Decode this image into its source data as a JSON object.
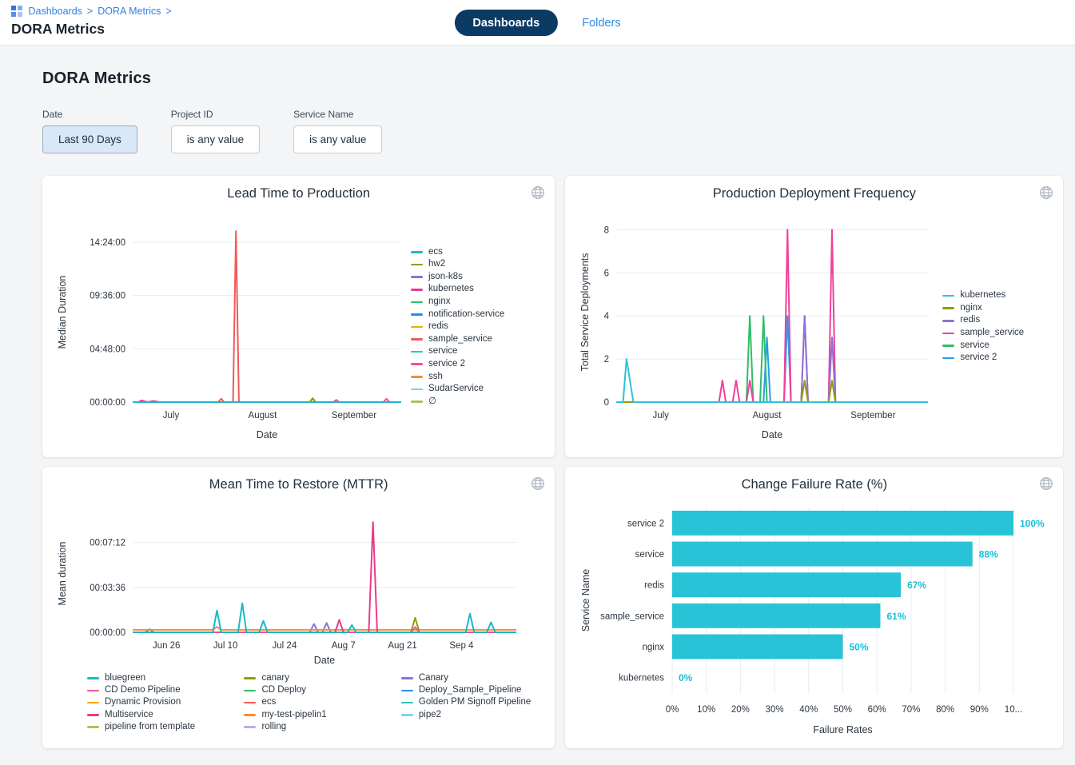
{
  "header": {
    "breadcrumb": {
      "items": [
        "Dashboards",
        "DORA Metrics"
      ],
      "separator": ">"
    },
    "page_title": "DORA Metrics",
    "tabs": {
      "dashboards": "Dashboards",
      "folders": "Folders"
    }
  },
  "dashboard": {
    "title": "DORA Metrics"
  },
  "filters": [
    {
      "label": "Date",
      "value": "Last 90 Days",
      "active": true
    },
    {
      "label": "Project ID",
      "value": "is any value",
      "active": false
    },
    {
      "label": "Service Name",
      "value": "is any value",
      "active": false
    }
  ],
  "icons": {
    "globe": "globe-icon",
    "breadcrumb_grid": "dashboard-grid-icon"
  },
  "colors": {
    "accent_blue": "#2f80e1",
    "pill_navy": "#0b3a63",
    "bar_cyan": "#28c3d7",
    "card_bg": "#ffffff",
    "page_bg": "#f4f5f7"
  },
  "chart_data": [
    {
      "type": "line",
      "title": "Lead Time to Production",
      "xlabel": "Date",
      "ylabel": "Median Duration",
      "x_domain": [
        0,
        91
      ],
      "x_ticks": [
        {
          "v": 13,
          "label": "July"
        },
        {
          "v": 44,
          "label": "August"
        },
        {
          "v": 75,
          "label": "September"
        }
      ],
      "y_ticks": [
        {
          "v": 0,
          "label": "00:00:00"
        },
        {
          "v": 4.8,
          "label": "04:48:00"
        },
        {
          "v": 9.6,
          "label": "09:36:00"
        },
        {
          "v": 14.4,
          "label": "14:24:00"
        }
      ],
      "y_max": 16.2,
      "legend_position": "right",
      "series": [
        {
          "name": "ecs",
          "color": "#1bb8c9",
          "points": [
            [
              0,
              0
            ],
            [
              91,
              0
            ]
          ]
        },
        {
          "name": "hw2",
          "color": "#8f9f06",
          "points": [
            [
              0,
              0
            ],
            [
              60,
              0
            ],
            [
              61,
              0.35
            ],
            [
              62,
              0
            ],
            [
              91,
              0
            ]
          ]
        },
        {
          "name": "json-k8s",
          "color": "#8b72d8",
          "points": [
            [
              0,
              0
            ],
            [
              91,
              0
            ]
          ]
        },
        {
          "name": "kubernetes",
          "color": "#ea3b8b",
          "points": [
            [
              0,
              0
            ],
            [
              2,
              0
            ],
            [
              3,
              0.15
            ],
            [
              5,
              0
            ],
            [
              7,
              0.1
            ],
            [
              9,
              0
            ],
            [
              91,
              0
            ]
          ]
        },
        {
          "name": "nginx",
          "color": "#2fbe66",
          "points": [
            [
              0,
              0
            ],
            [
              91,
              0
            ]
          ]
        },
        {
          "name": "notification-service",
          "color": "#2a8ceb",
          "points": [
            [
              0,
              0
            ],
            [
              91,
              0
            ]
          ]
        },
        {
          "name": "redis",
          "color": "#f3a712",
          "points": [
            [
              0,
              0
            ],
            [
              91,
              0
            ]
          ]
        },
        {
          "name": "sample_service",
          "color": "#f25a5a",
          "points": [
            [
              0,
              0
            ],
            [
              29,
              0
            ],
            [
              30,
              0.3
            ],
            [
              31,
              0
            ],
            [
              34,
              0
            ],
            [
              35,
              15.4
            ],
            [
              36,
              0
            ],
            [
              91,
              0
            ]
          ]
        },
        {
          "name": "service",
          "color": "#2cc7b2",
          "points": [
            [
              0,
              0
            ],
            [
              91,
              0
            ]
          ]
        },
        {
          "name": "service 2",
          "color": "#ef5298",
          "points": [
            [
              0,
              0
            ],
            [
              68,
              0
            ],
            [
              69,
              0.2
            ],
            [
              70,
              0
            ],
            [
              85,
              0
            ],
            [
              86,
              0.3
            ],
            [
              87,
              0
            ],
            [
              91,
              0
            ]
          ]
        },
        {
          "name": "ssh",
          "color": "#f68e33",
          "points": [
            [
              0,
              0
            ],
            [
              91,
              0
            ]
          ]
        },
        {
          "name": "SudarService",
          "color": "#74d8e8",
          "points": [
            [
              0,
              0
            ],
            [
              91,
              0
            ]
          ]
        },
        {
          "name": "∅",
          "color": "#a9c353",
          "points": [
            [
              0,
              0
            ],
            [
              60,
              0
            ],
            [
              61,
              0.3
            ],
            [
              62,
              0
            ],
            [
              91,
              0
            ]
          ]
        }
      ]
    },
    {
      "type": "line",
      "title": "Production Deployment Frequency",
      "xlabel": "Date",
      "ylabel": "Total Service Deployments",
      "x_domain": [
        0,
        91
      ],
      "x_ticks": [
        {
          "v": 13,
          "label": "July"
        },
        {
          "v": 44,
          "label": "August"
        },
        {
          "v": 75,
          "label": "September"
        }
      ],
      "y_ticks": [
        {
          "v": 0,
          "label": "0"
        },
        {
          "v": 2,
          "label": "2"
        },
        {
          "v": 4,
          "label": "4"
        },
        {
          "v": 6,
          "label": "6"
        },
        {
          "v": 8,
          "label": "8"
        }
      ],
      "y_max": 8.35,
      "legend_position": "right",
      "series": [
        {
          "name": "kubernetes",
          "color": "#2bc4d9",
          "points": [
            [
              0,
              0
            ],
            [
              2,
              0
            ],
            [
              3,
              2
            ],
            [
              5,
              0
            ],
            [
              91,
              0
            ]
          ]
        },
        {
          "name": "nginx",
          "color": "#8f9f06",
          "points": [
            [
              0,
              0
            ],
            [
              54,
              0
            ],
            [
              55,
              1
            ],
            [
              56,
              0
            ],
            [
              62,
              0
            ],
            [
              63,
              1
            ],
            [
              64,
              0
            ],
            [
              91,
              0
            ]
          ]
        },
        {
          "name": "redis",
          "color": "#8b72d8",
          "points": [
            [
              0,
              0
            ],
            [
              54,
              0
            ],
            [
              55,
              4
            ],
            [
              56,
              0
            ],
            [
              62,
              0
            ],
            [
              63,
              3
            ],
            [
              64,
              0
            ],
            [
              91,
              0
            ]
          ]
        },
        {
          "name": "sample_service",
          "color": "#f0409c",
          "points": [
            [
              0,
              0
            ],
            [
              30,
              0
            ],
            [
              31,
              1
            ],
            [
              32,
              0
            ],
            [
              34,
              0
            ],
            [
              35,
              1
            ],
            [
              36,
              0
            ],
            [
              38,
              0
            ],
            [
              39,
              1
            ],
            [
              40,
              0
            ],
            [
              49,
              0
            ],
            [
              50,
              8
            ],
            [
              51,
              0
            ],
            [
              54,
              0
            ],
            [
              55,
              4
            ],
            [
              56,
              0
            ],
            [
              62,
              0
            ],
            [
              63,
              8
            ],
            [
              64,
              0
            ],
            [
              91,
              0
            ]
          ]
        },
        {
          "name": "service",
          "color": "#2fbe66",
          "points": [
            [
              0,
              0
            ],
            [
              38,
              0
            ],
            [
              39,
              4
            ],
            [
              40,
              0
            ],
            [
              42,
              0
            ],
            [
              43,
              4
            ],
            [
              44,
              0
            ],
            [
              91,
              0
            ]
          ]
        },
        {
          "name": "service 2",
          "color": "#2b9ceb",
          "points": [
            [
              0,
              0
            ],
            [
              43,
              0
            ],
            [
              44,
              3
            ],
            [
              45,
              0
            ],
            [
              49,
              0
            ],
            [
              50,
              4
            ],
            [
              51,
              0
            ],
            [
              91,
              0
            ]
          ]
        }
      ]
    },
    {
      "type": "line",
      "title": "Mean Time to Restore (MTTR)",
      "xlabel": "Date",
      "ylabel": "Mean duration",
      "x_domain": [
        0,
        91
      ],
      "x_ticks": [
        {
          "v": 8,
          "label": "Jun 26"
        },
        {
          "v": 22,
          "label": "Jul 10"
        },
        {
          "v": 36,
          "label": "Jul 24"
        },
        {
          "v": 50,
          "label": "Aug 7"
        },
        {
          "v": 64,
          "label": "Aug 21"
        },
        {
          "v": 78,
          "label": "Sep 4"
        }
      ],
      "y_ticks": [
        {
          "v": 0,
          "label": "00:00:00"
        },
        {
          "v": 216,
          "label": "00:03:36"
        },
        {
          "v": 432,
          "label": "00:07:12"
        }
      ],
      "y_max": 565,
      "legend_position": "bottom",
      "series": [
        {
          "name": "bluegreen",
          "color": "#1bb8c9",
          "points": [
            [
              0,
              0
            ],
            [
              19,
              0
            ],
            [
              20,
              105
            ],
            [
              21,
              0
            ],
            [
              25,
              0
            ],
            [
              26,
              140
            ],
            [
              27,
              0
            ],
            [
              30,
              0
            ],
            [
              31,
              55
            ],
            [
              32,
              0
            ],
            [
              51,
              0
            ],
            [
              52,
              35
            ],
            [
              53,
              0
            ],
            [
              79,
              0
            ],
            [
              80,
              90
            ],
            [
              81,
              0
            ],
            [
              84,
              0
            ],
            [
              85,
              48
            ],
            [
              86,
              0
            ],
            [
              91,
              0
            ]
          ]
        },
        {
          "name": "CD Demo Pipeline",
          "color": "#ef5298",
          "points": [
            [
              0,
              0
            ],
            [
              66,
              0
            ],
            [
              67,
              25
            ],
            [
              68,
              0
            ],
            [
              91,
              0
            ]
          ]
        },
        {
          "name": "Dynamic Provision",
          "color": "#f3a712",
          "points": [
            [
              0,
              0
            ],
            [
              91,
              0
            ]
          ]
        },
        {
          "name": "Multiservice",
          "color": "#ea3b8b",
          "points": [
            [
              0,
              0
            ],
            [
              48,
              0
            ],
            [
              49,
              60
            ],
            [
              50,
              0
            ],
            [
              56,
              0
            ],
            [
              57,
              530
            ],
            [
              58,
              0
            ],
            [
              91,
              0
            ]
          ]
        },
        {
          "name": "pipeline from template",
          "color": "#a9c353",
          "points": [
            [
              0,
              0
            ],
            [
              91,
              0
            ]
          ]
        },
        {
          "name": "canary",
          "color": "#8f9f06",
          "points": [
            [
              0,
              0
            ],
            [
              66,
              0
            ],
            [
              67,
              70
            ],
            [
              68,
              0
            ],
            [
              91,
              0
            ]
          ]
        },
        {
          "name": "CD Deploy",
          "color": "#2fbe66",
          "points": [
            [
              0,
              0
            ],
            [
              91,
              0
            ]
          ]
        },
        {
          "name": "ecs",
          "color": "#f25a5a",
          "points": [
            [
              0,
              0
            ],
            [
              91,
              0
            ]
          ]
        },
        {
          "name": "my-test-pipelin1",
          "color": "#f68e33",
          "points": [
            [
              0,
              12
            ],
            [
              19,
              12
            ],
            [
              20,
              26
            ],
            [
              21,
              12
            ],
            [
              91,
              12
            ]
          ]
        },
        {
          "name": "rolling",
          "color": "#b9aee8",
          "points": [
            [
              0,
              0
            ],
            [
              91,
              0
            ]
          ]
        },
        {
          "name": "Canary",
          "color": "#8b72d8",
          "points": [
            [
              0,
              0
            ],
            [
              42,
              0
            ],
            [
              43,
              40
            ],
            [
              44,
              0
            ],
            [
              45,
              0
            ],
            [
              46,
              45
            ],
            [
              47,
              0
            ],
            [
              91,
              0
            ]
          ]
        },
        {
          "name": "Deploy_Sample_Pipeline",
          "color": "#2a8ceb",
          "points": [
            [
              0,
              0
            ],
            [
              3,
              0
            ],
            [
              4,
              15
            ],
            [
              5,
              0
            ],
            [
              91,
              0
            ]
          ]
        },
        {
          "name": "Golden PM Signoff Pipeline",
          "color": "#2cc7b2",
          "points": [
            [
              0,
              0
            ],
            [
              91,
              0
            ]
          ]
        },
        {
          "name": "pipe2",
          "color": "#74d8e8",
          "points": [
            [
              0,
              0
            ],
            [
              91,
              0
            ]
          ]
        }
      ]
    },
    {
      "type": "bar",
      "title": "Change Failure Rate (%)",
      "xlabel": "Failure Rates",
      "ylabel": "Service Name",
      "categories": [
        "service 2",
        "service",
        "redis",
        "sample_service",
        "nginx",
        "kubernetes"
      ],
      "values": [
        100,
        88,
        67,
        61,
        50,
        0
      ],
      "value_labels": [
        "100%",
        "88%",
        "67%",
        "61%",
        "50%",
        "0%"
      ],
      "x_ticks": [
        {
          "v": 0,
          "label": "0%"
        },
        {
          "v": 10,
          "label": "10%"
        },
        {
          "v": 20,
          "label": "20%"
        },
        {
          "v": 30,
          "label": "30%"
        },
        {
          "v": 40,
          "label": "40%"
        },
        {
          "v": 50,
          "label": "50%"
        },
        {
          "v": 60,
          "label": "60%"
        },
        {
          "v": 70,
          "label": "70%"
        },
        {
          "v": 80,
          "label": "80%"
        },
        {
          "v": 90,
          "label": "90%"
        },
        {
          "v": 100,
          "label": "10..."
        }
      ],
      "x_max": 100,
      "bar_color": "#28c3d7",
      "label_color": "#17c0d8"
    }
  ]
}
